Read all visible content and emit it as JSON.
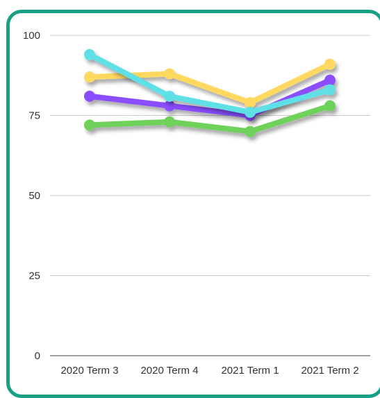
{
  "chart_data": {
    "type": "line",
    "title": "",
    "xlabel": "",
    "ylabel": "",
    "categories": [
      "2020 Term 3",
      "2020 Term 4",
      "2021 Term 1",
      "2021 Term 2"
    ],
    "yticks": [
      "0",
      "25",
      "50",
      "75",
      "100"
    ],
    "ylim": [
      0,
      100
    ],
    "grid": true,
    "legend": "none",
    "series": [
      {
        "color": "#ffd95e",
        "values": [
          87,
          88,
          79,
          91
        ]
      },
      {
        "color": "#8a4dff",
        "values": [
          81,
          78,
          75,
          86
        ]
      },
      {
        "color": "#5ee0e6",
        "values": [
          94,
          81,
          76,
          83
        ]
      },
      {
        "color": "#6ed25a",
        "values": [
          72,
          73,
          70,
          78
        ]
      }
    ]
  },
  "frame": {
    "border_color": "#17a085"
  }
}
